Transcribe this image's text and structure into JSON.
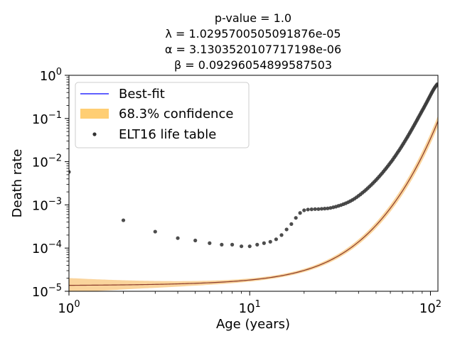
{
  "chart_data": {
    "type": "scatter",
    "title_lines": [
      "p-value  = 1.0",
      "λ = 1.0295700505091876e-05",
      "α = 3.1303520107717198e-06",
      "β = 0.09296054899587503"
    ],
    "xlabel": "Age (years)",
    "ylabel": "Death rate",
    "xscale": "log",
    "yscale": "log",
    "xlim": [
      1,
      110
    ],
    "ylim": [
      1e-05,
      1
    ],
    "grid": false,
    "legend_position": "upper-left",
    "x_ticks": [
      {
        "value": 1,
        "base": "10",
        "exp": "0"
      },
      {
        "value": 10,
        "base": "10",
        "exp": "1"
      },
      {
        "value": 100,
        "base": "10",
        "exp": "2"
      }
    ],
    "y_ticks": [
      {
        "value": 1e-05,
        "base": "10",
        "exp": "−5"
      },
      {
        "value": 0.0001,
        "base": "10",
        "exp": "−4"
      },
      {
        "value": 0.001,
        "base": "10",
        "exp": "−3"
      },
      {
        "value": 0.01,
        "base": "10",
        "exp": "−2"
      },
      {
        "value": 0.1,
        "base": "10",
        "exp": "−1"
      },
      {
        "value": 1,
        "base": "10",
        "exp": "0"
      }
    ],
    "model": {
      "lambda": 1.0295700505091876e-05,
      "alpha": 3.1303520107717198e-06,
      "beta": 0.09296054899587503
    },
    "legend": [
      {
        "label": "Best-fit",
        "kind": "line",
        "color": "#0000ff"
      },
      {
        "label": "68.3% confidence",
        "kind": "band",
        "color": "#ffa500"
      },
      {
        "label": "ELT16 life table",
        "kind": "points",
        "color": "#333333"
      }
    ],
    "colors": {
      "best_fit": "#8a3a2a",
      "band": "#f5b04a",
      "points": "#3a3a3a"
    },
    "series": [
      {
        "name": "ELT16 life table",
        "x": [
          1,
          2,
          3,
          4,
          5,
          6,
          7,
          8,
          9,
          10,
          11,
          12,
          13,
          14,
          15,
          16,
          17,
          18,
          19,
          20,
          21,
          22,
          23,
          24,
          25,
          26,
          27,
          28,
          29,
          30,
          31,
          32,
          33,
          34,
          35,
          36,
          37,
          38,
          39,
          40,
          41,
          42,
          43,
          44,
          45,
          46,
          47,
          48,
          49,
          50,
          51,
          52,
          53,
          54,
          55,
          56,
          57,
          58,
          59,
          60,
          61,
          62,
          63,
          64,
          65,
          66,
          67,
          68,
          69,
          70,
          71,
          72,
          73,
          74,
          75,
          76,
          77,
          78,
          79,
          80,
          81,
          82,
          83,
          84,
          85,
          86,
          87,
          88,
          89,
          90,
          91,
          92,
          93,
          94,
          95,
          96,
          97,
          98,
          99,
          100,
          101,
          102,
          103,
          104,
          105,
          106,
          107,
          108,
          109
        ],
        "y": [
          0.0058,
          0.00044,
          0.00024,
          0.00017,
          0.00015,
          0.00013,
          0.00012,
          0.00012,
          0.00011,
          0.00011,
          0.00012,
          0.00013,
          0.00014,
          0.00016,
          0.0002,
          0.00027,
          0.00036,
          0.0005,
          0.00065,
          0.00075,
          0.00078,
          0.00079,
          0.0008,
          0.0008,
          0.00081,
          0.00082,
          0.00083,
          0.00085,
          0.00088,
          0.00091,
          0.00095,
          0.00099,
          0.00104,
          0.00109,
          0.00115,
          0.00122,
          0.0013,
          0.00139,
          0.0015,
          0.00162,
          0.00175,
          0.0019,
          0.00206,
          0.00224,
          0.00244,
          0.00266,
          0.0029,
          0.00316,
          0.00345,
          0.00377,
          0.00412,
          0.00451,
          0.00494,
          0.00541,
          0.00593,
          0.0065,
          0.00713,
          0.00782,
          0.00858,
          0.00942,
          0.0103,
          0.0113,
          0.0125,
          0.0137,
          0.0151,
          0.0166,
          0.0182,
          0.02,
          0.022,
          0.0242,
          0.0266,
          0.0293,
          0.0322,
          0.0354,
          0.0389,
          0.0428,
          0.047,
          0.0516,
          0.0567,
          0.0622,
          0.0682,
          0.0748,
          0.082,
          0.0898,
          0.0983,
          0.1075,
          0.1174,
          0.128,
          0.1395,
          0.152,
          0.165,
          0.1795,
          0.195,
          0.212,
          0.23,
          0.25,
          0.272,
          0.295,
          0.32,
          0.347,
          0.375,
          0.405,
          0.436,
          0.468,
          0.5,
          0.53,
          0.56,
          0.59,
          0.62
        ]
      }
    ]
  }
}
